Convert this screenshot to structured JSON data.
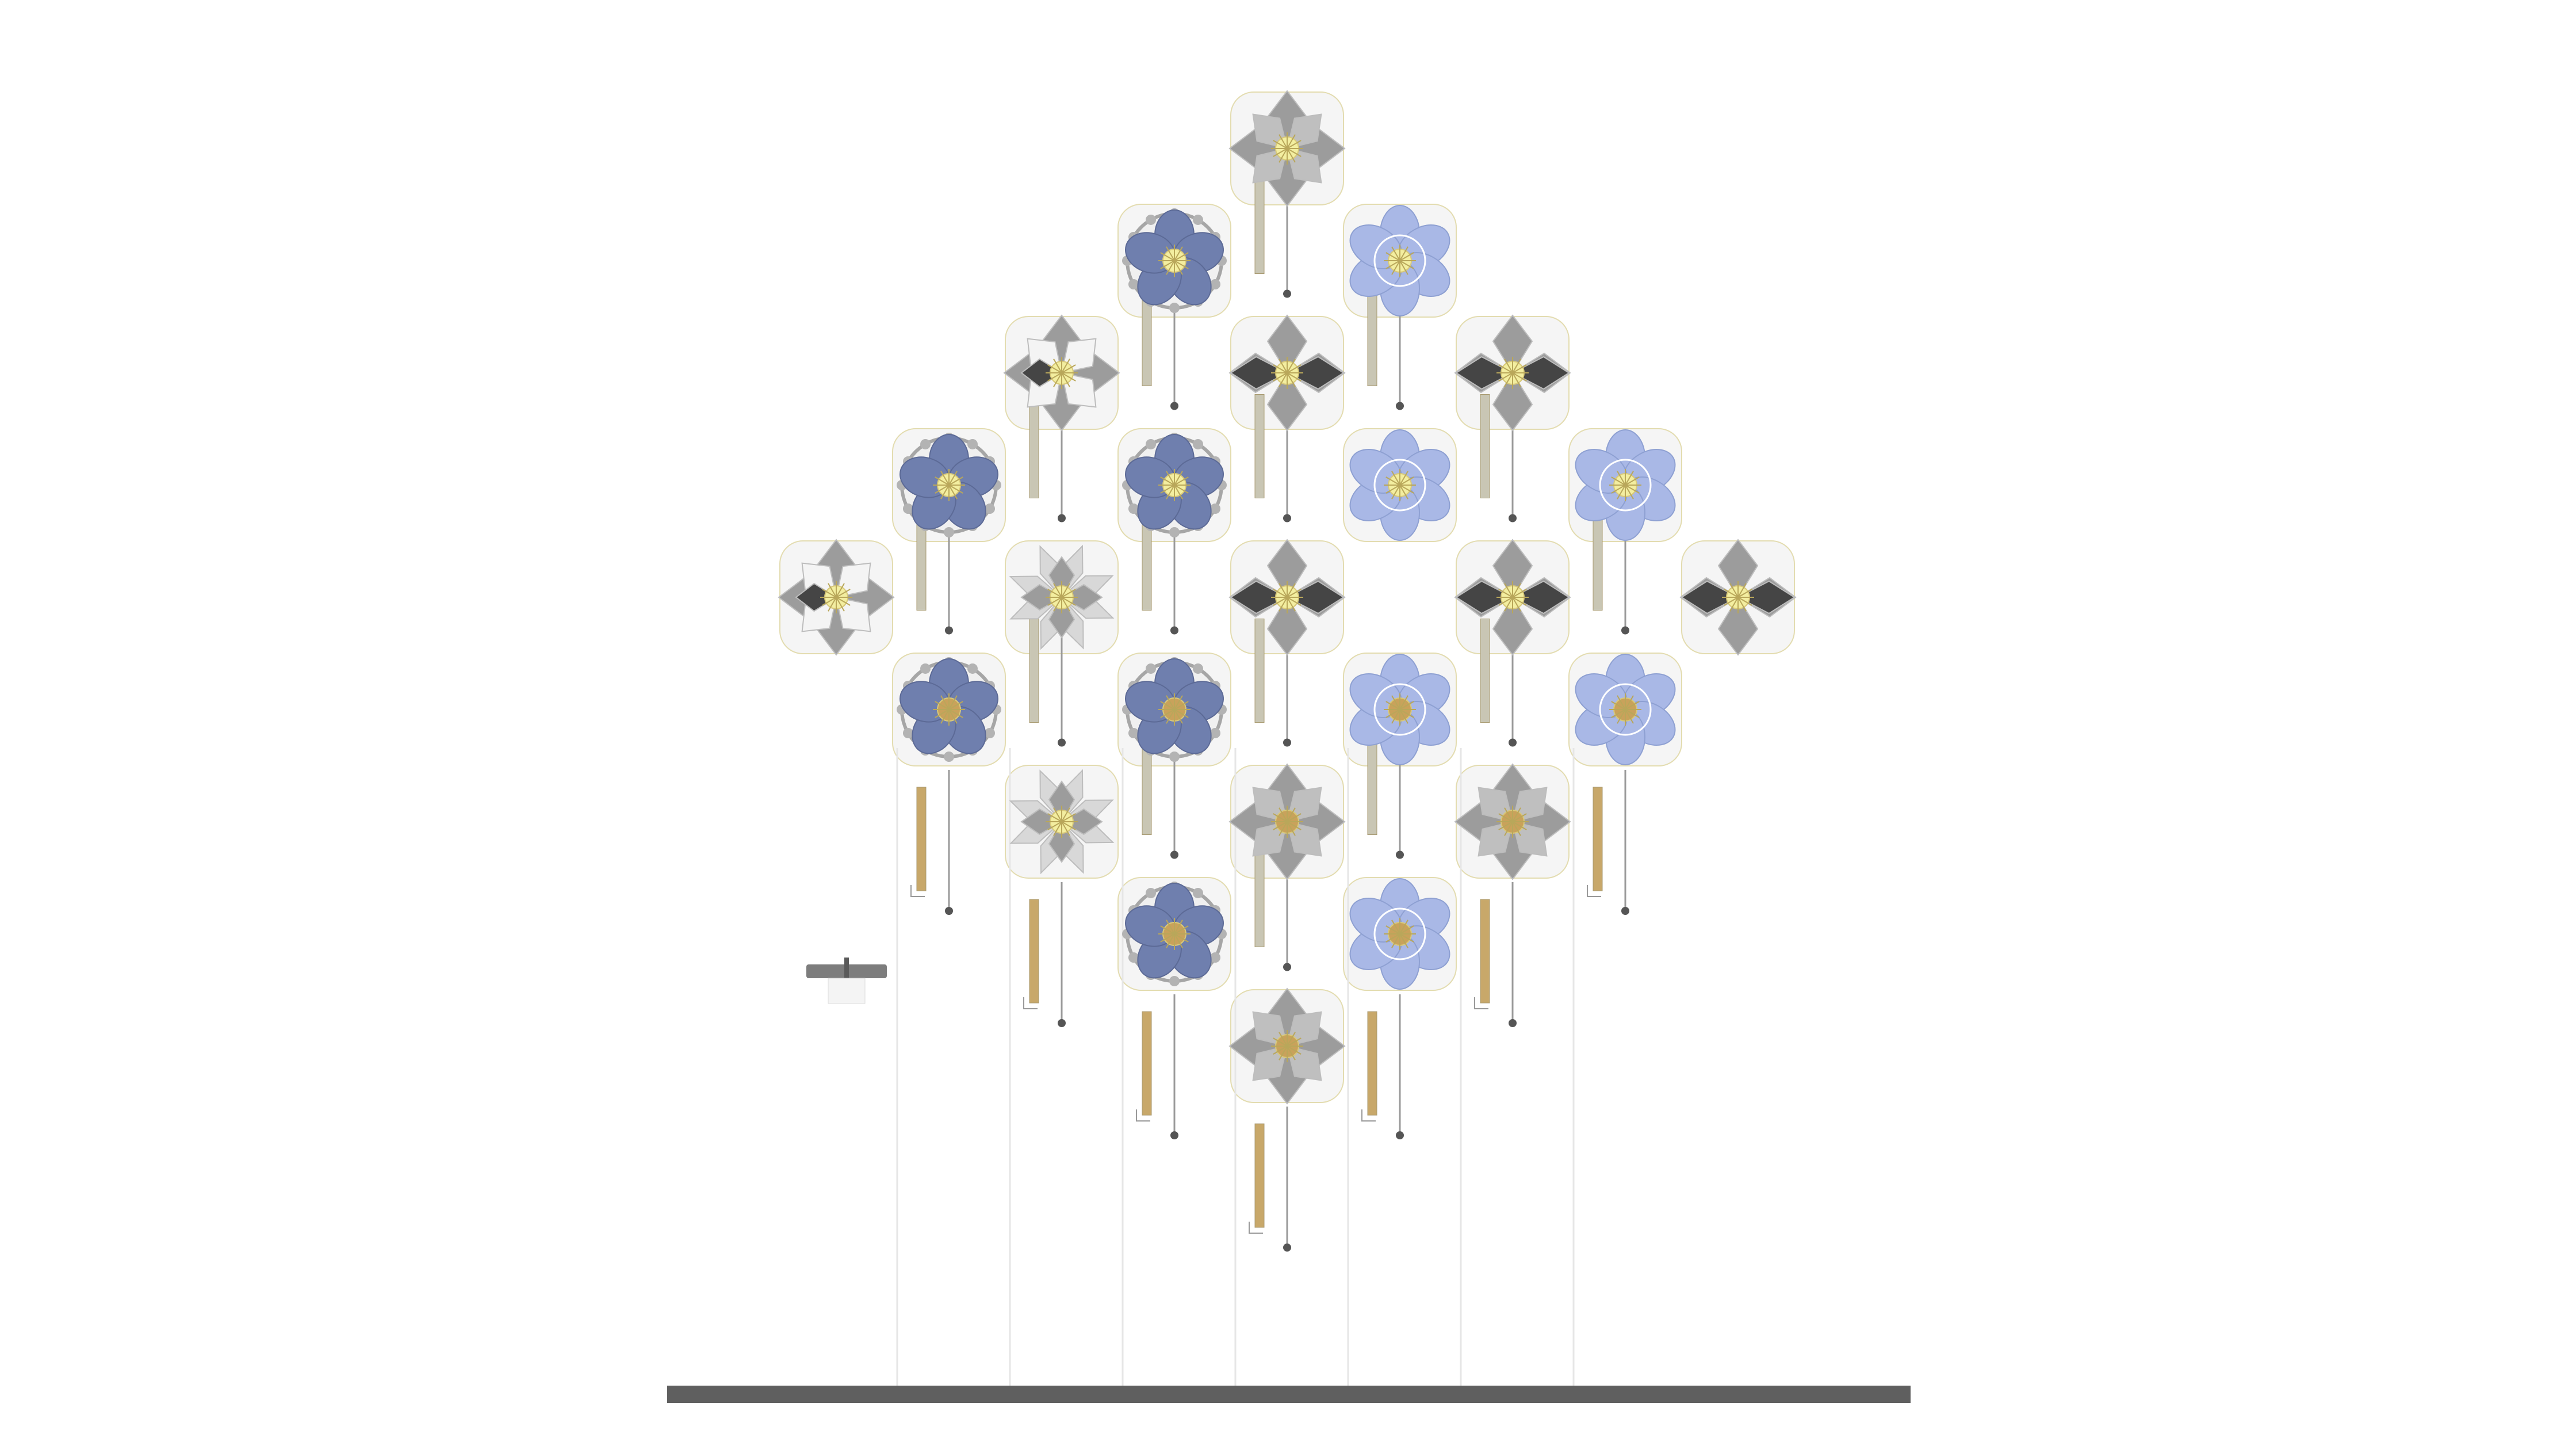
{
  "colors": {
    "background": "#ffffff",
    "panel_fill": "#f5f5f5",
    "panel_outline": "#e3dcb0",
    "floor_bar": "#5f5f5f",
    "rod_silver": "#c9c6b4",
    "rod_gold": "#c8a86a",
    "chain": "#9a9a9a",
    "blue_petal": "#a9b8e6",
    "blue_petal_dark": "#6f7fae",
    "grey_petal": "#9c9c9c",
    "dark_petal": "#454545",
    "white_petal": "#f4f4f4",
    "center_light": "#f3eea0",
    "center_gold": "#c9a25b",
    "side_fixture": "#7d7d7d"
  },
  "flowers": [
    {
      "row": 0,
      "col": 4,
      "kind": "star4"
    },
    {
      "row": 1,
      "col": 3,
      "kind": "dark-cog"
    },
    {
      "row": 1,
      "col": 5,
      "kind": "blue"
    },
    {
      "row": 2,
      "col": 2,
      "kind": "white-star"
    },
    {
      "row": 2,
      "col": 4,
      "kind": "star-dark"
    },
    {
      "row": 2,
      "col": 6,
      "kind": "star-dark"
    },
    {
      "row": 3,
      "col": 1,
      "kind": "dark-cog"
    },
    {
      "row": 3,
      "col": 3,
      "kind": "dark-cog"
    },
    {
      "row": 3,
      "col": 5,
      "kind": "blue"
    },
    {
      "row": 3,
      "col": 7,
      "kind": "blue"
    },
    {
      "row": 4,
      "col": 0,
      "kind": "white-star"
    },
    {
      "row": 4,
      "col": 2,
      "kind": "spiky"
    },
    {
      "row": 4,
      "col": 4,
      "kind": "star-dark"
    },
    {
      "row": 4,
      "col": 6,
      "kind": "star-dark"
    },
    {
      "row": 4,
      "col": 8,
      "kind": "star-dark"
    },
    {
      "row": 5,
      "col": 1,
      "kind": "cog-gold"
    },
    {
      "row": 5,
      "col": 3,
      "kind": "cog-gold"
    },
    {
      "row": 5,
      "col": 5,
      "kind": "blue-gold"
    },
    {
      "row": 5,
      "col": 7,
      "kind": "blue-gold"
    },
    {
      "row": 6,
      "col": 2,
      "kind": "spiky"
    },
    {
      "row": 6,
      "col": 4,
      "kind": "star-gold"
    },
    {
      "row": 6,
      "col": 6,
      "kind": "star-gold"
    },
    {
      "row": 7,
      "col": 3,
      "kind": "cog-gold"
    },
    {
      "row": 7,
      "col": 5,
      "kind": "blue-gold"
    },
    {
      "row": 8,
      "col": 4,
      "kind": "star-gold"
    }
  ],
  "rods": [
    {
      "row": 0.5,
      "col": 4,
      "finish": "silver"
    },
    {
      "row": 1.5,
      "col": 3,
      "finish": "silver"
    },
    {
      "row": 1.5,
      "col": 5,
      "finish": "silver"
    },
    {
      "row": 2.5,
      "col": 2,
      "finish": "silver"
    },
    {
      "row": 2.5,
      "col": 4,
      "finish": "silver"
    },
    {
      "row": 2.5,
      "col": 6,
      "finish": "silver"
    },
    {
      "row": 3.5,
      "col": 1,
      "finish": "silver"
    },
    {
      "row": 3.5,
      "col": 3,
      "finish": "silver"
    },
    {
      "row": 3.5,
      "col": 7,
      "finish": "silver"
    },
    {
      "row": 4.5,
      "col": 2,
      "finish": "silver"
    },
    {
      "row": 4.5,
      "col": 4,
      "finish": "silver"
    },
    {
      "row": 4.5,
      "col": 6,
      "finish": "silver"
    },
    {
      "row": 5.5,
      "col": 3,
      "finish": "silver"
    },
    {
      "row": 5.5,
      "col": 5,
      "finish": "silver"
    },
    {
      "row": 6.5,
      "col": 4,
      "finish": "silver"
    },
    {
      "row": 6.0,
      "col": 1,
      "finish": "gold"
    },
    {
      "row": 6.0,
      "col": 7,
      "finish": "gold"
    },
    {
      "row": 7.0,
      "col": 2,
      "finish": "gold"
    },
    {
      "row": 7.0,
      "col": 6,
      "finish": "gold"
    },
    {
      "row": 8.0,
      "col": 3,
      "finish": "gold"
    },
    {
      "row": 8.0,
      "col": 5,
      "finish": "gold"
    },
    {
      "row": 9.0,
      "col": 4,
      "finish": "gold"
    }
  ]
}
